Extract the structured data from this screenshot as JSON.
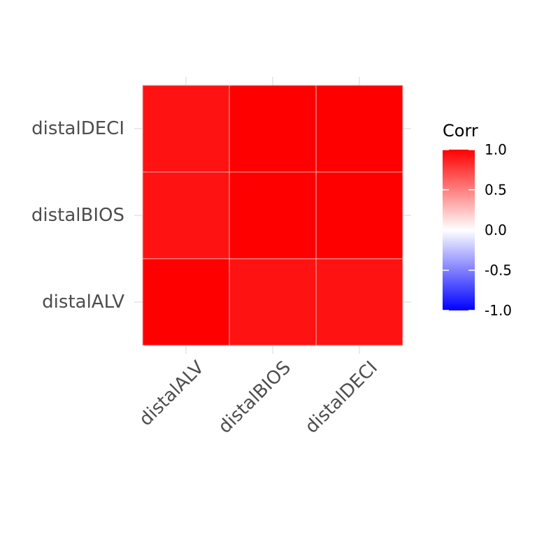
{
  "chart_data": {
    "type": "heatmap",
    "x_categories": [
      "distalALV",
      "distalBIOS",
      "distalDECI"
    ],
    "y_categories": [
      "distalALV",
      "distalBIOS",
      "distalDECI"
    ],
    "matrix": [
      [
        1.0,
        0.93,
        0.93
      ],
      [
        0.93,
        1.0,
        1.0
      ],
      [
        0.93,
        1.0,
        1.0
      ]
    ],
    "color_scale": {
      "low": "#0000FF",
      "mid": "#FFFFFF",
      "high": "#FF0000",
      "limits": [
        -1,
        1
      ]
    },
    "legend": {
      "title": "Corr",
      "ticks": [
        "1.0",
        "0.5",
        "0.0",
        "-0.5",
        "-1.0"
      ],
      "tick_values": [
        1.0,
        0.5,
        0.0,
        -0.5,
        -1.0
      ]
    },
    "legend_position": "right",
    "grid": true
  }
}
